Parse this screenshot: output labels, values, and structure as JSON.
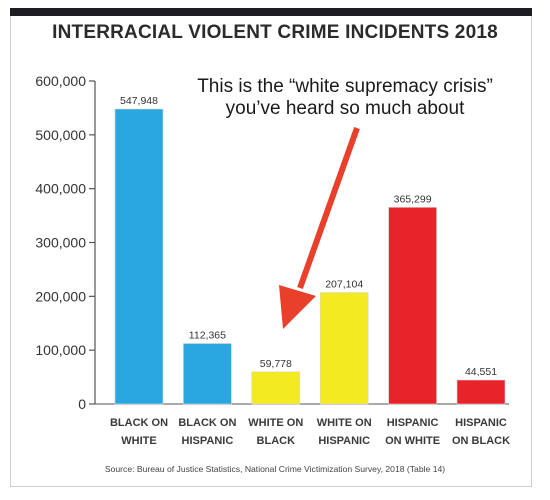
{
  "chart_data": {
    "type": "bar",
    "title": "INTERRACIAL VIOLENT CRIME INCIDENTS 2018",
    "annotation_lines": [
      "This is the “white supremacy crisis”",
      "you’ve heard so much about"
    ],
    "source": "Source: Bureau of Justice Statistics, National Crime Victimization Survey, 2018 (Table 14)",
    "categories": [
      [
        "BLACK ON",
        "WHITE"
      ],
      [
        "BLACK ON",
        "HISPANIC"
      ],
      [
        "WHITE ON",
        "BLACK"
      ],
      [
        "WHITE ON",
        "HISPANIC"
      ],
      [
        "HISPANIC",
        "ON WHITE"
      ],
      [
        "HISPANIC",
        "ON BLACK"
      ]
    ],
    "values": [
      547948,
      112365,
      59778,
      207104,
      365299,
      44551
    ],
    "value_labels": [
      "547,948",
      "112,365",
      "59,778",
      "207,104",
      "365,299",
      "44,551"
    ],
    "bar_colors": [
      "#2aa6e0",
      "#2aa6e0",
      "#f4ea21",
      "#f4ea21",
      "#e8232a",
      "#e8232a"
    ],
    "ylim": [
      0,
      600000
    ],
    "yticks": [
      0,
      100000,
      200000,
      300000,
      400000,
      500000,
      600000
    ],
    "ytick_labels": [
      "0",
      "100,000",
      "200,000",
      "300,000",
      "400,000",
      "500,000",
      "600,000"
    ],
    "grid": false,
    "arrow_color": "#e8402a"
  }
}
